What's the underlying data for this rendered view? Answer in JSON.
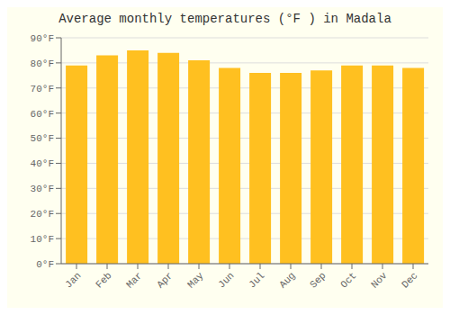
{
  "chart_data": {
    "type": "bar",
    "title": "Average monthly temperatures (°F ) in Madala",
    "categories": [
      "Jan",
      "Feb",
      "Mar",
      "Apr",
      "May",
      "Jun",
      "Jul",
      "Aug",
      "Sep",
      "Oct",
      "Nov",
      "Dec"
    ],
    "values": [
      79,
      83,
      85,
      84,
      81,
      78,
      76,
      76,
      77,
      79,
      79,
      78
    ],
    "color": "#FFC020",
    "ylim": [
      0,
      90
    ],
    "yticks": [
      {
        "value": 0,
        "label": "0°F"
      },
      {
        "value": 10,
        "label": "10°F"
      },
      {
        "value": 20,
        "label": "20°F"
      },
      {
        "value": 30,
        "label": "30°F"
      },
      {
        "value": 40,
        "label": "40°F"
      },
      {
        "value": 50,
        "label": "50°F"
      },
      {
        "value": 60,
        "label": "60°F"
      },
      {
        "value": 70,
        "label": "70°F"
      },
      {
        "value": 80,
        "label": "80°F"
      },
      {
        "value": 90,
        "label": "90°F"
      }
    ],
    "grid": true
  }
}
